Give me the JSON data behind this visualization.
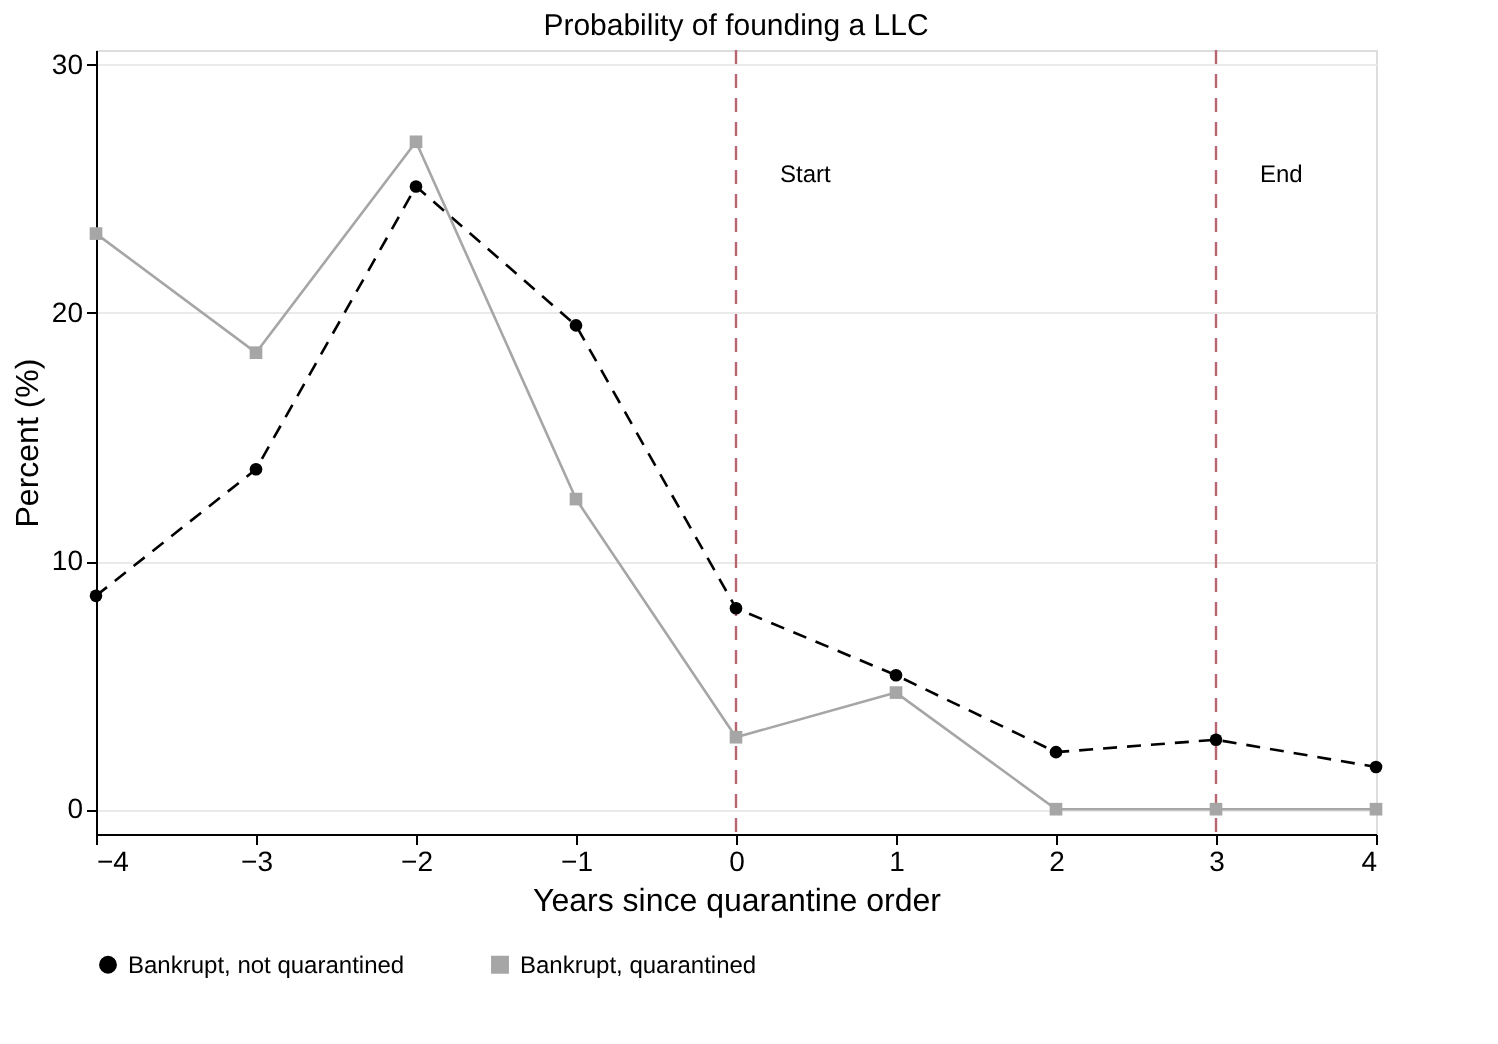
{
  "chart_data": {
    "type": "line",
    "title": "Probability of founding a LLC",
    "xlabel": "Years since quarantine order",
    "ylabel": "Percent (%)",
    "x": [
      -4,
      -3,
      -2,
      -1,
      0,
      1,
      2,
      3,
      4
    ],
    "series": [
      {
        "name": "Bankrupt, not quarantined",
        "color": "#000000",
        "marker": "circle",
        "line_style": "dashed",
        "values": [
          8.6,
          13.7,
          25.1,
          19.5,
          8.1,
          5.4,
          2.3,
          2.8,
          1.7
        ]
      },
      {
        "name": "Bankrupt, quarantined",
        "color": "#a6a6a6",
        "marker": "square",
        "line_style": "solid",
        "values": [
          23.2,
          18.4,
          26.9,
          12.5,
          2.9,
          4.7,
          0,
          0,
          0
        ]
      }
    ],
    "xlim": [
      -4,
      4
    ],
    "xticks": [
      -4,
      -3,
      -2,
      -1,
      0,
      1,
      2,
      3,
      4
    ],
    "ylim": [
      -1,
      30.6
    ],
    "yticks": [
      0,
      10,
      20,
      30
    ],
    "ref_lines": [
      {
        "axis": "x",
        "value": 0,
        "label": "Start",
        "color": "#b5676f",
        "line_style": "dashed"
      },
      {
        "axis": "x",
        "value": 3,
        "label": "End",
        "color": "#b5676f",
        "line_style": "dashed"
      }
    ],
    "grid": "y",
    "legend": "bottom"
  }
}
